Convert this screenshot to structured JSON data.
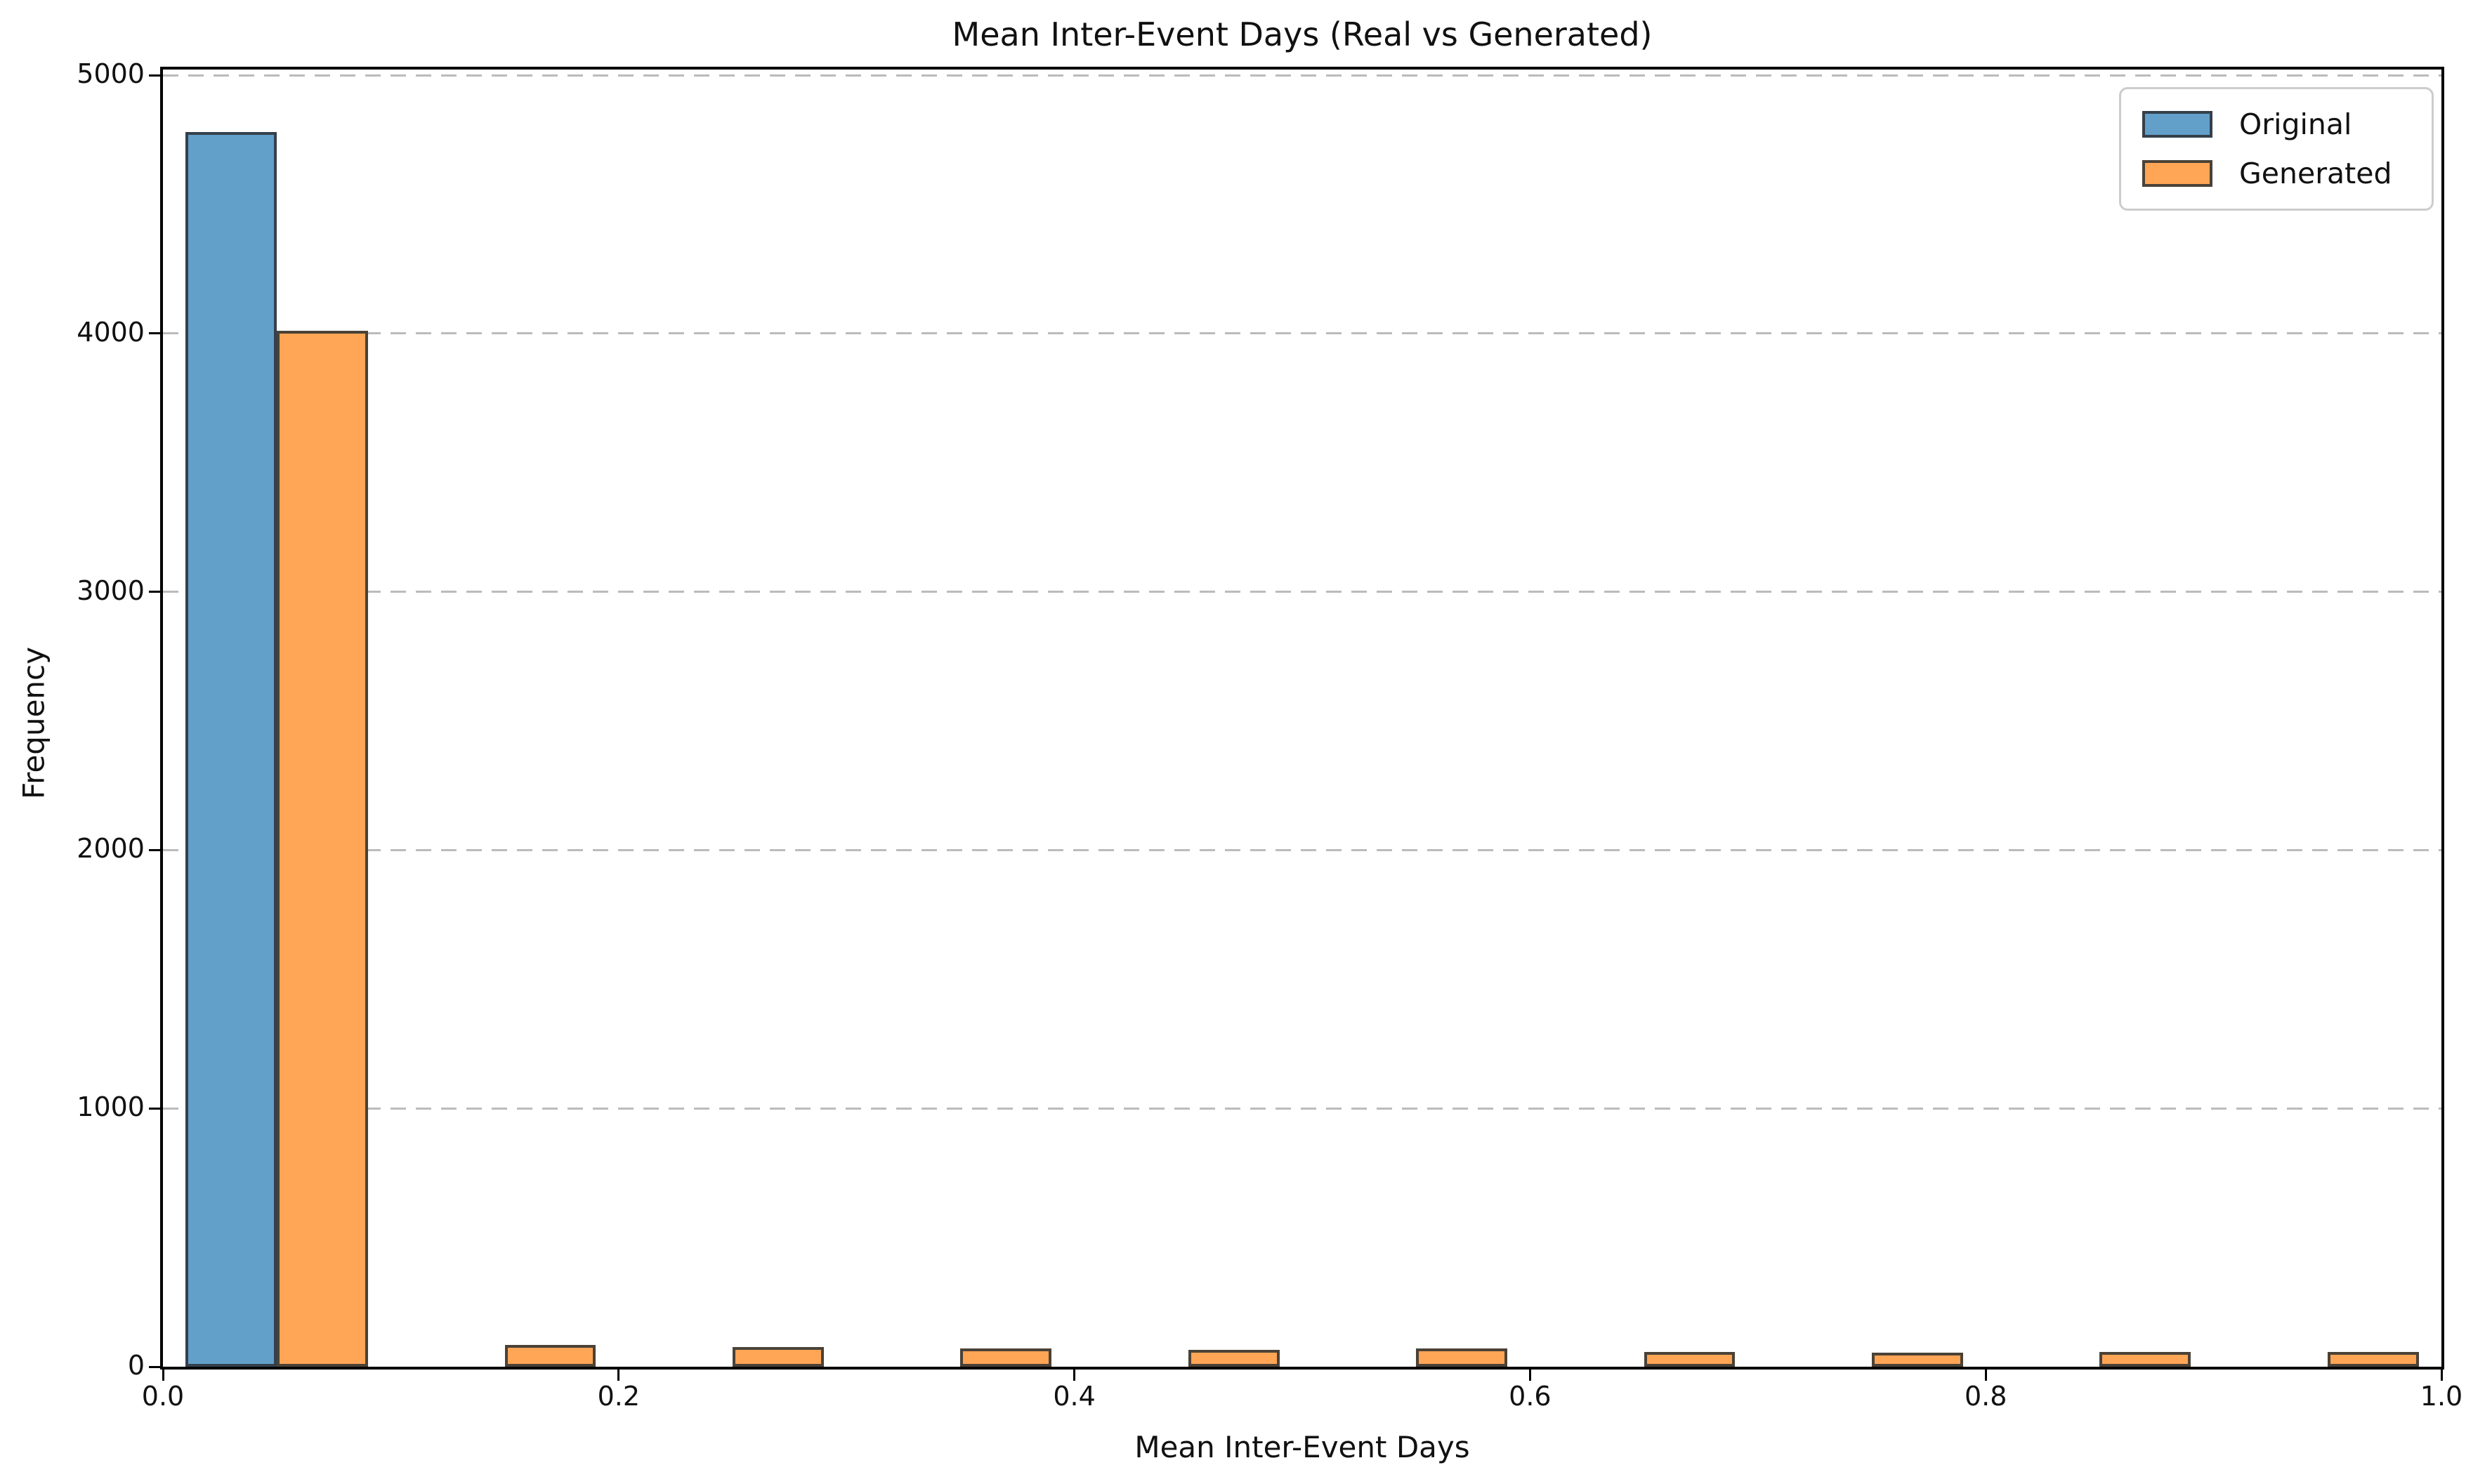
{
  "chart_data": {
    "type": "bar",
    "subtype": "histogram",
    "title": "Mean Inter-Event Days (Real vs Generated)",
    "xlabel": "Mean Inter-Event Days",
    "ylabel": "Frequency",
    "xlim": [
      0.0,
      1.0
    ],
    "ylim": [
      0,
      5022
    ],
    "grid": "horizontal-dashed",
    "grid_color": "#bbbbbb",
    "legend_position": "upper-right",
    "x_ticks": [
      {
        "value": 0.0,
        "label": "0.0"
      },
      {
        "value": 0.2,
        "label": "0.2"
      },
      {
        "value": 0.4,
        "label": "0.4"
      },
      {
        "value": 0.6,
        "label": "0.6"
      },
      {
        "value": 0.8,
        "label": "0.8"
      },
      {
        "value": 1.0,
        "label": "1.0"
      }
    ],
    "y_ticks": [
      {
        "value": 0,
        "label": "0"
      },
      {
        "value": 1000,
        "label": "1000"
      },
      {
        "value": 2000,
        "label": "2000"
      },
      {
        "value": 3000,
        "label": "3000"
      },
      {
        "value": 4000,
        "label": "4000"
      },
      {
        "value": 5000,
        "label": "5000"
      }
    ],
    "series": [
      {
        "name": "Original",
        "color": "#62A0CA",
        "edge": "#34404b",
        "bins": [
          {
            "x0": 0.01,
            "x1": 0.05,
            "count": 4780
          }
        ]
      },
      {
        "name": "Generated",
        "color": "#FFA556",
        "edge": "#4a4237",
        "bins": [
          {
            "x0": 0.05,
            "x1": 0.09,
            "count": 4010
          },
          {
            "x0": 0.15,
            "x1": 0.19,
            "count": 85
          },
          {
            "x0": 0.25,
            "x1": 0.29,
            "count": 76
          },
          {
            "x0": 0.35,
            "x1": 0.39,
            "count": 70
          },
          {
            "x0": 0.45,
            "x1": 0.49,
            "count": 64
          },
          {
            "x0": 0.55,
            "x1": 0.59,
            "count": 70
          },
          {
            "x0": 0.65,
            "x1": 0.69,
            "count": 56
          },
          {
            "x0": 0.75,
            "x1": 0.79,
            "count": 54
          },
          {
            "x0": 0.85,
            "x1": 0.89,
            "count": 58
          },
          {
            "x0": 0.95,
            "x1": 0.99,
            "count": 58
          }
        ]
      }
    ]
  }
}
